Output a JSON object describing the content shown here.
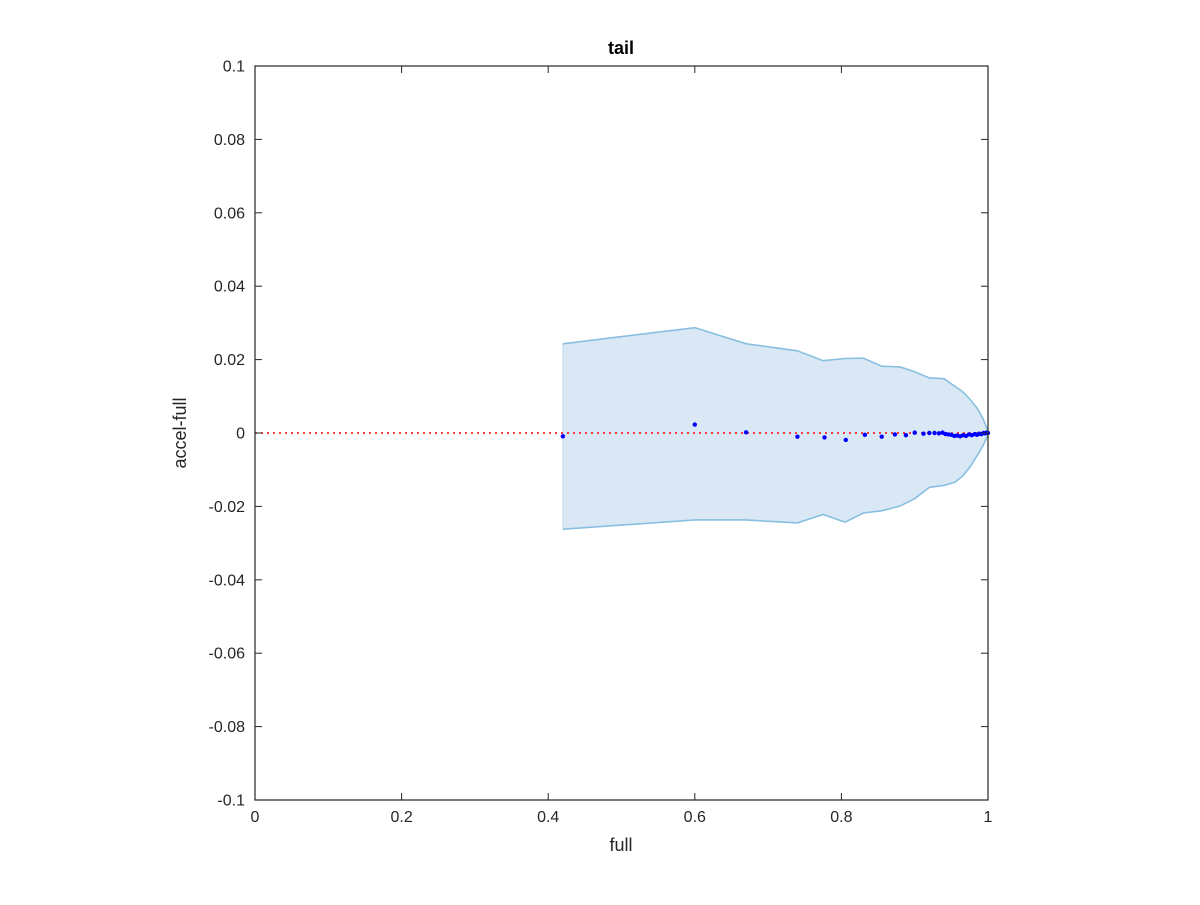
{
  "chart_data": {
    "type": "scatter",
    "title": "tail",
    "xlabel": "full",
    "ylabel": "accel-full",
    "xlim": [
      0,
      1
    ],
    "ylim": [
      -0.1,
      0.1
    ],
    "x_ticks": [
      0,
      0.2,
      0.4,
      0.6,
      0.8,
      1
    ],
    "x_tick_labels": [
      "0",
      "0.2",
      "0.4",
      "0.6",
      "0.8",
      "1"
    ],
    "y_ticks": [
      0.1,
      0.08,
      0.06,
      0.04,
      0.02,
      0,
      -0.02,
      -0.04,
      -0.06,
      -0.08,
      -0.1
    ],
    "y_tick_labels": [
      "0.1",
      "0.08",
      "0.06",
      "0.04",
      "0.02",
      "0",
      "-0.02",
      "-0.04",
      "-0.06",
      "-0.08",
      "-0.1"
    ],
    "grid": false,
    "reference_line": {
      "y": 0,
      "style": "dotted",
      "color": "#ff0000"
    },
    "band": {
      "fill_color": "#d9e8f4",
      "edge_color": "#88bfe0",
      "x": [
        0.42,
        0.6,
        0.67,
        0.74,
        0.775,
        0.805,
        0.83,
        0.855,
        0.88,
        0.9,
        0.92,
        0.94,
        0.955,
        0.965,
        0.975,
        0.985,
        0.993,
        1.0
      ],
      "upper": [
        0.0243,
        0.0287,
        0.0243,
        0.0224,
        0.0197,
        0.0203,
        0.0204,
        0.0182,
        0.018,
        0.0167,
        0.015,
        0.0148,
        0.0127,
        0.0113,
        0.0093,
        0.0068,
        0.004,
        0.0005
      ],
      "lower": [
        -0.0262,
        -0.0237,
        -0.0237,
        -0.0245,
        -0.0222,
        -0.0243,
        -0.0218,
        -0.0212,
        -0.0199,
        -0.0179,
        -0.0148,
        -0.0143,
        -0.0134,
        -0.0118,
        -0.0094,
        -0.0062,
        -0.0035,
        -0.0005
      ]
    },
    "series": [
      {
        "color": "#0000ff",
        "x": [
          0.42,
          0.6,
          0.67,
          0.74,
          0.777,
          0.806,
          0.832,
          0.855,
          0.873,
          0.888,
          0.9,
          0.912,
          0.92,
          0.927,
          0.933,
          0.938,
          0.942,
          0.946,
          0.95,
          0.954,
          0.958,
          0.962,
          0.966,
          0.97,
          0.974,
          0.978,
          0.982,
          0.985,
          0.988,
          0.991,
          0.994,
          0.996,
          0.998,
          1.0
        ],
        "y": [
          -0.0009,
          0.0023,
          0.0002,
          -0.001,
          -0.0012,
          -0.0019,
          -0.0005,
          -0.001,
          -0.0004,
          -0.0006,
          0.0001,
          -0.0002,
          0.0,
          0.0,
          -0.0001,
          0.0001,
          -0.0003,
          -0.0004,
          -0.0005,
          -0.0008,
          -0.0007,
          -0.0009,
          -0.0006,
          -0.0008,
          -0.0004,
          -0.0006,
          -0.0003,
          -0.0005,
          -0.0002,
          -0.0003,
          0.0,
          -0.0001,
          0.0001,
          0.0
        ]
      }
    ]
  }
}
